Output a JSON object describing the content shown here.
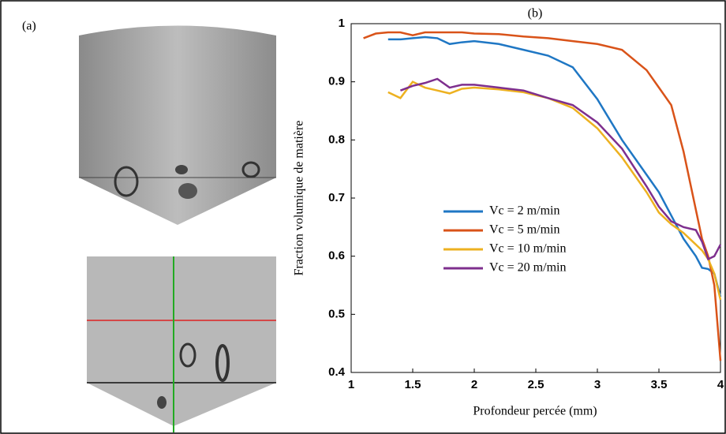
{
  "panel_a": {
    "label": "(a)"
  },
  "chart_data": {
    "type": "line",
    "title": "(b)",
    "x_label": "Profondeur percée (mm)",
    "y_label": "Fraction volumique de matière",
    "x": [
      1.1,
      1.2,
      1.3,
      1.4,
      1.5,
      1.6,
      1.7,
      1.8,
      1.9,
      2.0,
      2.2,
      2.4,
      2.6,
      2.8,
      3.0,
      3.2,
      3.4,
      3.5,
      3.6,
      3.7,
      3.8,
      3.85,
      3.9,
      3.95,
      4.0
    ],
    "series": [
      {
        "name": "Vc = 2 m/min",
        "color": "#1f77c4",
        "values": [
          null,
          null,
          0.973,
          0.973,
          0.975,
          0.977,
          0.975,
          0.965,
          0.968,
          0.97,
          0.965,
          0.955,
          0.945,
          0.925,
          0.87,
          0.8,
          0.74,
          0.71,
          0.67,
          0.63,
          0.6,
          0.58,
          0.578,
          0.57,
          0.53
        ]
      },
      {
        "name": "Vc = 5 m/min",
        "color": "#d95319",
        "values": [
          0.975,
          0.983,
          0.985,
          0.985,
          0.98,
          0.985,
          0.985,
          0.985,
          0.985,
          0.983,
          0.982,
          0.978,
          0.975,
          0.97,
          0.965,
          0.955,
          0.92,
          0.89,
          0.86,
          0.78,
          0.68,
          0.63,
          0.6,
          0.55,
          0.42
        ]
      },
      {
        "name": "Vc = 10 m/min",
        "color": "#edb120",
        "values": [
          null,
          null,
          0.882,
          0.872,
          0.9,
          0.89,
          0.885,
          0.88,
          0.888,
          0.89,
          0.887,
          0.882,
          0.872,
          0.855,
          0.82,
          0.77,
          0.71,
          0.675,
          0.655,
          0.64,
          0.62,
          0.61,
          0.595,
          0.57,
          0.525
        ]
      },
      {
        "name": "Vc = 20 m/min",
        "color": "#7e2f8e",
        "values": [
          null,
          null,
          null,
          0.885,
          0.893,
          0.898,
          0.905,
          0.89,
          0.895,
          0.895,
          0.89,
          0.885,
          0.872,
          0.86,
          0.83,
          0.785,
          0.72,
          0.685,
          0.66,
          0.65,
          0.645,
          0.625,
          0.595,
          0.6,
          0.62
        ]
      }
    ],
    "xlim": [
      1,
      4
    ],
    "ylim": [
      0.4,
      1
    ],
    "xticks": [
      1,
      1.5,
      2,
      2.5,
      3,
      3.5,
      4
    ],
    "yticks": [
      0.4,
      0.5,
      0.6,
      0.7,
      0.8,
      0.9,
      1
    ]
  }
}
